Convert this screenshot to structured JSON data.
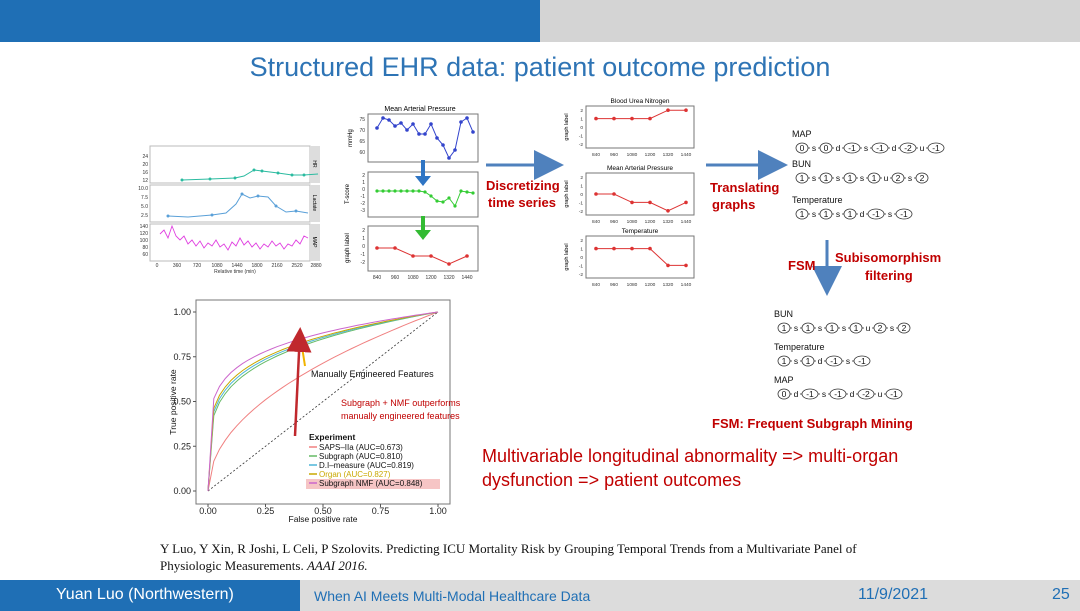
{
  "slide": {
    "title": "Structured EHR data: patient outcome prediction",
    "headline": "Multivariable longitudinal abnormality => multi-organ dysfunction => patient outcomes",
    "fsm_definition": "FSM: Frequent Subgraph Mining",
    "citation_authors": "Y Luo, Y Xin, R Joshi, L Celi, P Szolovits. Predicting ICU Mortality Risk by Grouping Temporal Trends from a Multivariate Panel of Physiologic Measurements.",
    "citation_venue": "AAAI 2016."
  },
  "footer": {
    "author": "Yuan Luo (Northwestern)",
    "course": "When AI Meets Multi-Modal Healthcare Data",
    "date": "11/9/2021",
    "page": "25"
  },
  "pipeline": {
    "step1": [
      "Discretizing",
      "time series"
    ],
    "step2": [
      "Translating",
      "graphs"
    ],
    "fsm": "FSM",
    "subiso": [
      "Subisomorphism",
      "filtering"
    ],
    "colors": {
      "arrow": "#4f81bd",
      "red_text": "#c00000"
    }
  },
  "raw_series": {
    "panels": [
      "HR",
      "Lactate",
      "MAP"
    ],
    "xlabel": "Relative time (min)",
    "xticks": [
      "0",
      "360",
      "720",
      "1080",
      "1440",
      "1800",
      "2160",
      "2520",
      "2880"
    ],
    "yticks": [
      [
        "24",
        "20",
        "16",
        "12"
      ],
      [
        "10.0",
        "7.5",
        "5.0",
        "2.5"
      ],
      [
        "140",
        "120",
        "100",
        "80",
        "60"
      ]
    ]
  },
  "map_panel": {
    "title": "Mean Arterial Pressure",
    "ylabel_top": "mmHg",
    "ylabel_mid": "T-score",
    "ylabel_bot": "graph label",
    "yticks_top": [
      "75",
      "70",
      "65",
      "60"
    ],
    "yticks_mid": [
      "2",
      "1",
      "0",
      "-1",
      "-2",
      "-3"
    ],
    "yticks_bot": [
      "2",
      "1",
      "0",
      "-1",
      "-2"
    ],
    "xticks": [
      "840",
      "960",
      "1080",
      "1200",
      "1320",
      "1440"
    ]
  },
  "label_graphs": [
    {
      "title": "Blood Urea Nitrogen",
      "values": [
        1,
        1,
        1,
        1,
        2,
        2
      ]
    },
    {
      "title": "Mean Arterial Pressure",
      "values": [
        0,
        0,
        -1,
        -1,
        -2,
        -1
      ]
    },
    {
      "title": "Temperature",
      "values": [
        1,
        1,
        1,
        1,
        -1,
        -1
      ]
    }
  ],
  "label_graph_axis": {
    "ylabel": "graph label",
    "yticks": [
      "2",
      "1",
      "0",
      "-1",
      "-2"
    ],
    "xticks": [
      "840",
      "960",
      "1080",
      "1200",
      "1320",
      "1440"
    ]
  },
  "sequences": [
    {
      "name": "MAP",
      "tokens": [
        "0",
        "s",
        "0",
        "d",
        "-1",
        "s",
        "-1",
        "d",
        "-2",
        "u",
        "-1"
      ]
    },
    {
      "name": "BUN",
      "tokens": [
        "1",
        "s",
        "1",
        "s",
        "1",
        "s",
        "1",
        "u",
        "2",
        "s",
        "2"
      ]
    },
    {
      "name": "Temperature",
      "tokens": [
        "1",
        "s",
        "1",
        "s",
        "1",
        "d",
        "-1",
        "s",
        "-1"
      ]
    }
  ],
  "subgraphs": [
    {
      "name": "BUN",
      "tokens": [
        "1",
        "s",
        "1",
        "s",
        "1",
        "s",
        "1",
        "u",
        "2",
        "s",
        "2"
      ]
    },
    {
      "name": "Temperature",
      "tokens": [
        "1",
        "s",
        "1",
        "d",
        "-1",
        "s",
        "-1"
      ]
    },
    {
      "name": "MAP",
      "tokens": [
        "0",
        "d",
        "-1",
        "s",
        "-1",
        "d",
        "-2",
        "u",
        "-1"
      ]
    }
  ],
  "chart_data": {
    "type": "line",
    "title": "",
    "xlabel": "False positive rate",
    "ylabel": "True positive rate",
    "xlim": [
      0,
      1
    ],
    "ylim": [
      0,
      1
    ],
    "xticks": [
      "0.00",
      "0.25",
      "0.50",
      "0.75",
      "1.00"
    ],
    "yticks": [
      "0.00",
      "0.25",
      "0.50",
      "0.75",
      "1.00"
    ],
    "legend_title": "Experiment",
    "legend_position": "bottom-right",
    "series": [
      {
        "name": "SAPS–IIa (AUC=0.673)",
        "color": "#f08080",
        "auc": 0.673
      },
      {
        "name": "Subgraph (AUC=0.810)",
        "color": "#66bb66",
        "auc": 0.81
      },
      {
        "name": "D.I–measure (AUC=0.819)",
        "color": "#4db6d8",
        "auc": 0.819
      },
      {
        "name": "Organ (AUC=0.827)",
        "color": "#c9a800",
        "auc": 0.827
      },
      {
        "name": "Subgraph NMF (AUC=0.848)",
        "color": "#cc66cc",
        "auc": 0.848
      }
    ],
    "annotations": [
      "Manually Engineered Features",
      "Subgraph + NMF outperforms",
      "manually engineered features"
    ]
  }
}
